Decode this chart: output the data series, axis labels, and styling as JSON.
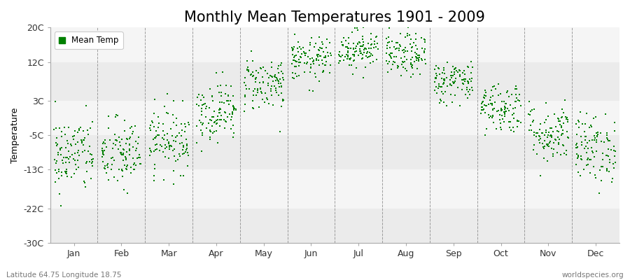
{
  "title": "Monthly Mean Temperatures 1901 - 2009",
  "ylabel": "Temperature",
  "xlabel_months": [
    "Jan",
    "Feb",
    "Mar",
    "Apr",
    "May",
    "Jun",
    "Jul",
    "Aug",
    "Sep",
    "Oct",
    "Nov",
    "Dec"
  ],
  "yticks": [
    -30,
    -22,
    -13,
    -5,
    3,
    12,
    20
  ],
  "ytick_labels": [
    "-30C",
    "-22C",
    "-13C",
    "-5C",
    "3C",
    "12C",
    "20C"
  ],
  "ymin": -30,
  "ymax": 20,
  "dot_color": "#008000",
  "legend_label": "Mean Temp",
  "footer_left": "Latitude 64.75 Longitude 18.75",
  "footer_right": "worldspecies.org",
  "bg_color": "#f5f5f5",
  "band_colors_alt": [
    "#ebebeb",
    "#f5f5f5"
  ],
  "title_fontsize": 15,
  "axis_fontsize": 9,
  "monthly_mean_temps": [
    -9.5,
    -9.5,
    -6.0,
    0.5,
    7.0,
    12.5,
    15.0,
    13.5,
    7.5,
    1.5,
    -4.5,
    -8.0
  ],
  "monthly_std_temps": [
    4.5,
    4.2,
    3.8,
    3.5,
    3.2,
    2.5,
    2.3,
    2.5,
    2.5,
    3.0,
    3.5,
    4.0
  ],
  "n_points": 109,
  "dot_size": 2.5,
  "dot_marker": "s"
}
